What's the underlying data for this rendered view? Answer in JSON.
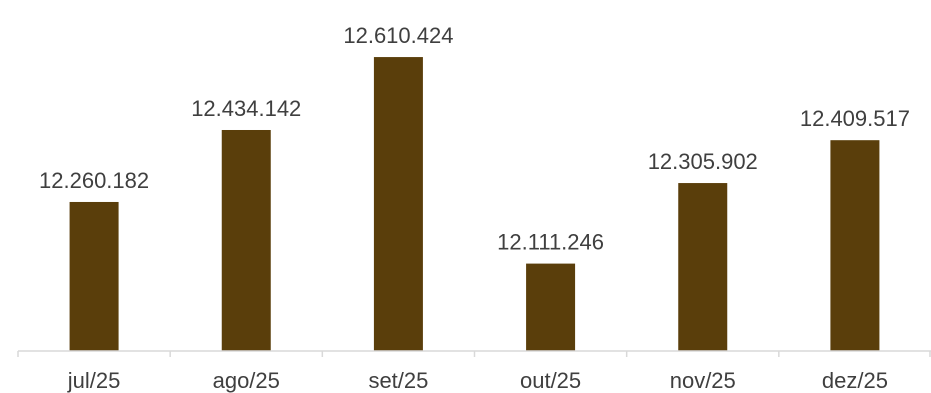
{
  "chart_data": {
    "type": "bar",
    "categories": [
      "jul/25",
      "ago/25",
      "set/25",
      "out/25",
      "nov/25",
      "dez/25"
    ],
    "values": [
      12260182,
      12434142,
      12610424,
      12111246,
      12305902,
      12409517
    ],
    "data_labels": [
      "12.260.182",
      "12.434.142",
      "12.610.424",
      "12.111.246",
      "12.305.902",
      "12.409.517"
    ],
    "bar_color": "#5a3e0b",
    "ylim": [
      11900000,
      12700000
    ],
    "grid": false,
    "legend": "none"
  }
}
